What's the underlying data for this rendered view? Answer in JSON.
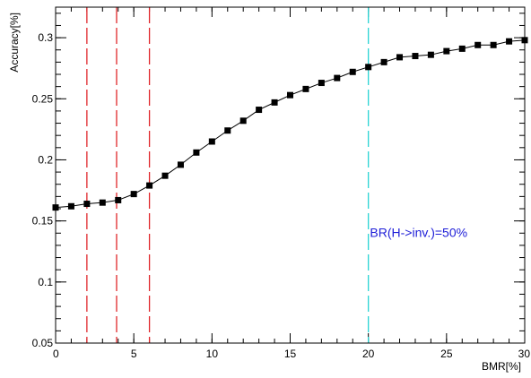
{
  "chart_data": {
    "type": "line",
    "title": "",
    "xlabel": "BMR[%]",
    "ylabel": "Accuracy[%]",
    "xlim": [
      0,
      30
    ],
    "ylim": [
      0.05,
      0.325
    ],
    "x_ticks": [
      "0",
      "5",
      "10",
      "15",
      "20",
      "25",
      "30"
    ],
    "y_ticks": [
      "0.05",
      "0.1",
      "0.15",
      "0.2",
      "0.25",
      "0.3"
    ],
    "grid": false,
    "series": [
      {
        "x": [
          0,
          1,
          2,
          3,
          4,
          5,
          6,
          7,
          8,
          9,
          10,
          11,
          12,
          13,
          14,
          15,
          16,
          17,
          18,
          19,
          20,
          21,
          22,
          23,
          24,
          25,
          26,
          27,
          28,
          29,
          30
        ],
        "y": [
          0.161,
          0.162,
          0.164,
          0.165,
          0.167,
          0.172,
          0.179,
          0.187,
          0.196,
          0.206,
          0.215,
          0.224,
          0.232,
          0.241,
          0.247,
          0.253,
          0.258,
          0.263,
          0.267,
          0.272,
          0.276,
          0.28,
          0.284,
          0.285,
          0.286,
          0.289,
          0.291,
          0.294,
          0.294,
          0.297,
          0.298
        ],
        "color": "#000000",
        "marker": "square"
      }
    ],
    "vertical_lines": [
      {
        "x": 2,
        "color": "#e0262a",
        "style": "dashed"
      },
      {
        "x": 3.9,
        "color": "#e0262a",
        "style": "dashed"
      },
      {
        "x": 6,
        "color": "#e0262a",
        "style": "dashed"
      },
      {
        "x": 20,
        "color": "#2ad4d4",
        "style": "dashed"
      }
    ],
    "annotations": [
      {
        "text": "BR(H->inv.)=50%",
        "x": 20.1,
        "y": 0.137,
        "color": "#2020d8"
      }
    ]
  }
}
